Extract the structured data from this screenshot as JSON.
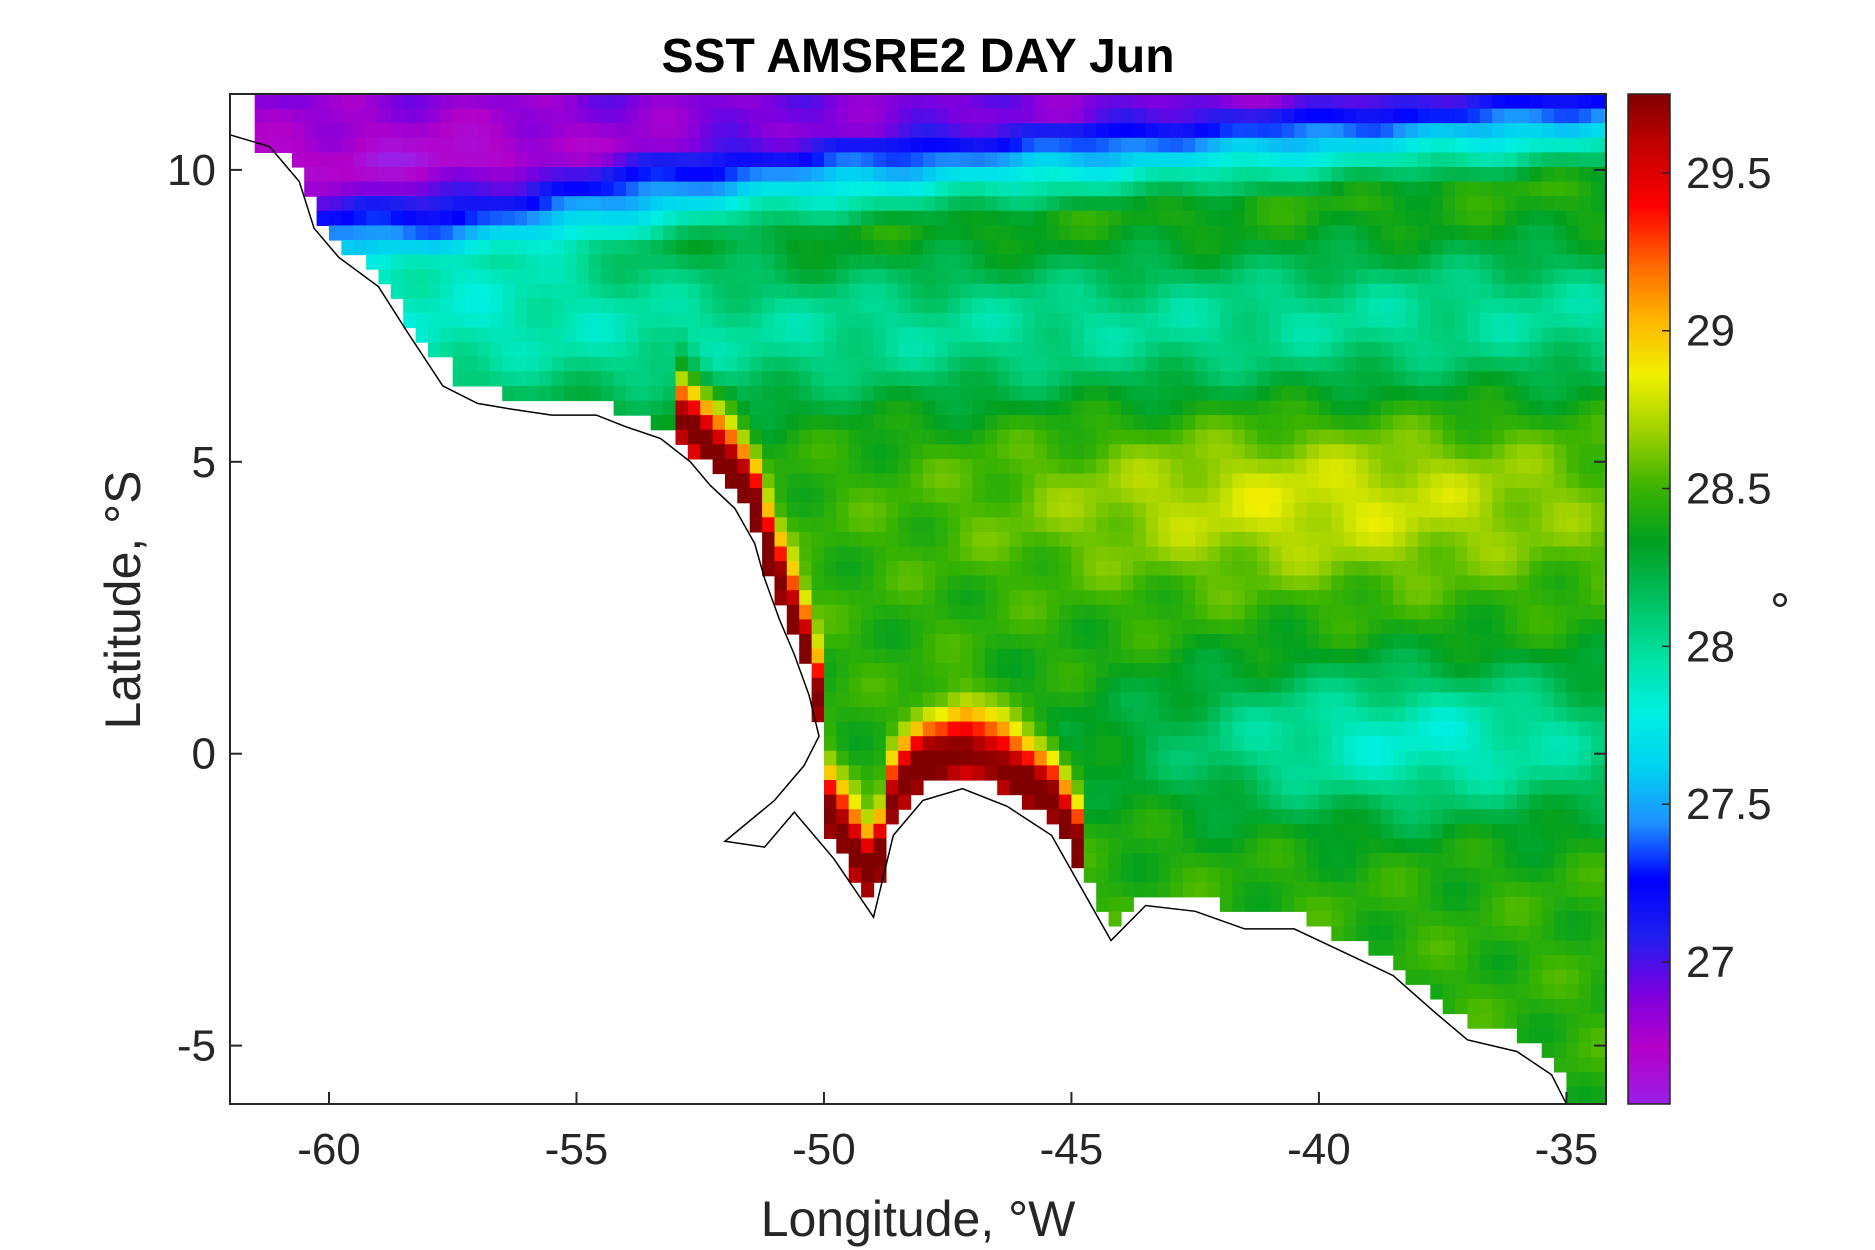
{
  "chart_data": {
    "type": "heatmap",
    "title": "SST AMSRE2 DAY Jun",
    "xlabel": "Longitude, °W",
    "ylabel": "Latitude, °S",
    "colorbar_label": "°",
    "xlim": [
      -62,
      -34.2
    ],
    "ylim": [
      -6,
      11.3
    ],
    "x_ticks": [
      -60,
      -55,
      -50,
      -45,
      -40,
      -35
    ],
    "y_ticks": [
      -5,
      0,
      5,
      10
    ],
    "colorbar_ticks": [
      27,
      27.5,
      28,
      28.5,
      29,
      29.5
    ],
    "color_range": [
      26.55,
      29.75
    ],
    "colormap": [
      "#9a1fe6",
      "#b400c8",
      "#7a00e0",
      "#1e1ef0",
      "#0000ff",
      "#1e90ff",
      "#00d2f0",
      "#00f0e0",
      "#00e0a0",
      "#00c060",
      "#00a020",
      "#3cb400",
      "#a0d200",
      "#f0f000",
      "#ffb400",
      "#ff6400",
      "#ff0000",
      "#c80000",
      "#800000"
    ],
    "grid": false,
    "features": [
      {
        "name": "cool northern band",
        "value": 27.0
      },
      {
        "name": "warm coastal current",
        "value": 29.7
      },
      {
        "name": "cool equatorial tongue",
        "value": 27.9
      }
    ]
  }
}
